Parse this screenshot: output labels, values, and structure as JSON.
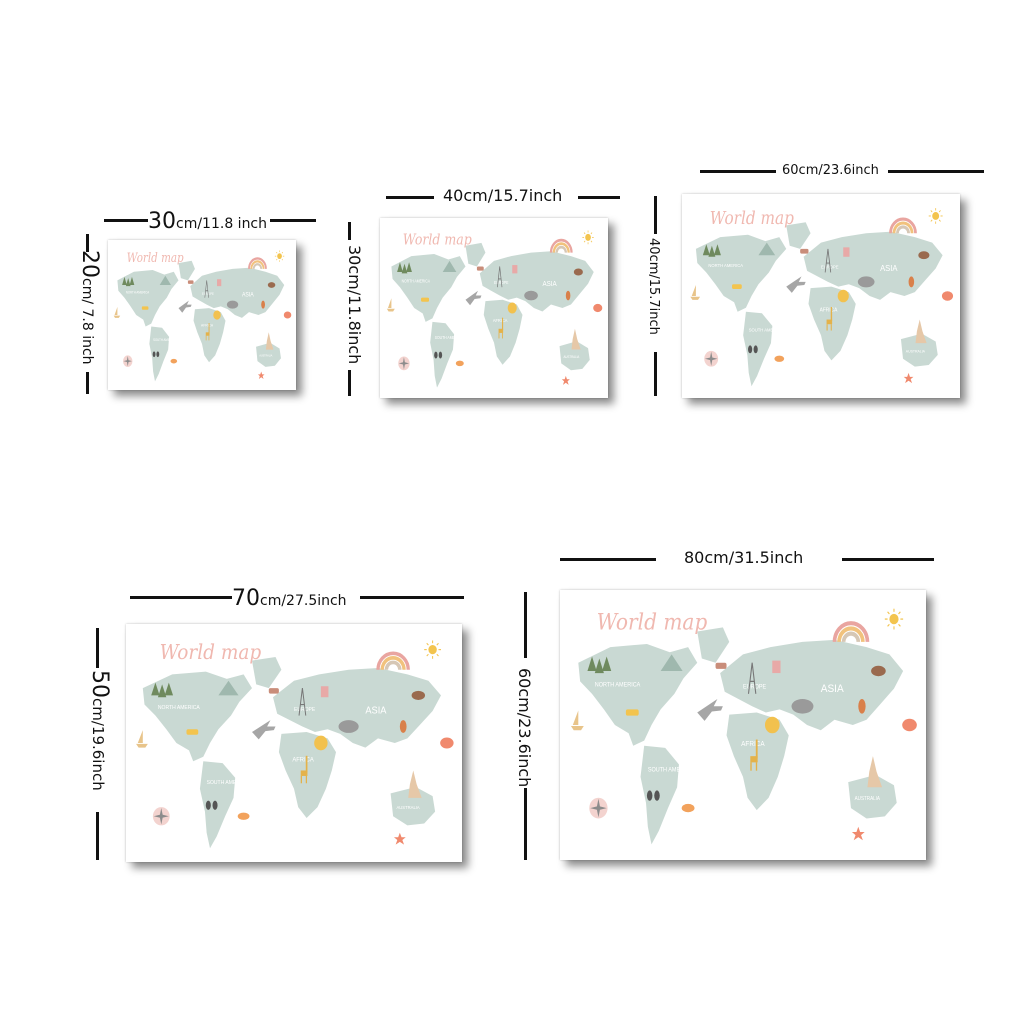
{
  "map": {
    "title": "World map",
    "labels": {
      "north_america": "NORTH AMERICA",
      "south_america": "SOUTH AMERICA",
      "europe": "EUROPE",
      "asia": "ASIA",
      "africa": "AFRICA",
      "australia": "AUSTRALIA"
    }
  },
  "sizes": [
    {
      "width_main": "30",
      "width_rest": "cm/11.8 inch",
      "height_main": "20",
      "height_rest": "cm/ 7.8 inch"
    },
    {
      "width_main": "40cm/15.7inch",
      "width_rest": "",
      "height_main": "30cm/11.8inch",
      "height_rest": ""
    },
    {
      "width_main": "60cm/23.6inch",
      "width_rest": "",
      "height_main": "40cm/15.7inch",
      "height_rest": ""
    },
    {
      "width_main": "70",
      "width_rest": "cm/27.5inch",
      "height_main": "50",
      "height_rest": "cm/19.6inch"
    },
    {
      "width_main": "80cm/31.5inch",
      "width_rest": "",
      "height_main": "60cm/23.6inch",
      "height_rest": ""
    }
  ],
  "colors": {
    "land": "#c9d9d3",
    "title": "#f0b8b0",
    "rainbow": [
      "#e9a5a0",
      "#f1c27d",
      "#d6c7b5"
    ],
    "sun": "#f3c44e"
  }
}
